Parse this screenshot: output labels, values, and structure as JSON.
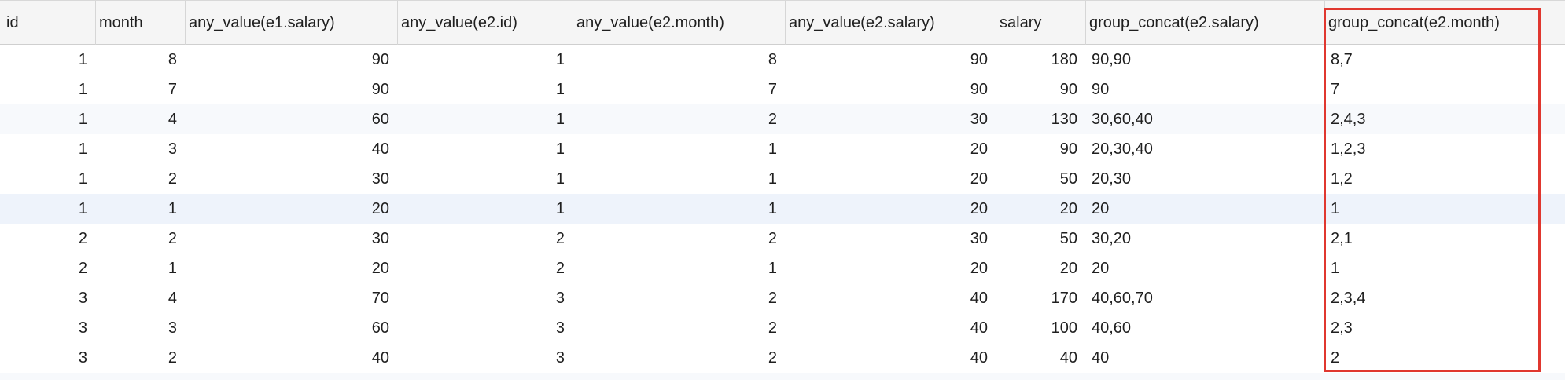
{
  "columns": [
    "id",
    "month",
    "any_value(e1.salary)",
    "any_value(e2.id)",
    "any_value(e2.month)",
    "any_value(e2.salary)",
    "salary",
    "group_concat(e2.salary)",
    "group_concat(e2.month)"
  ],
  "rows": [
    [
      "1",
      "8",
      "90",
      "1",
      "8",
      "90",
      "180",
      "90,90",
      "8,7"
    ],
    [
      "1",
      "7",
      "90",
      "1",
      "7",
      "90",
      "90",
      "90",
      "7"
    ],
    [
      "1",
      "4",
      "60",
      "1",
      "2",
      "30",
      "130",
      "30,60,40",
      "2,4,3"
    ],
    [
      "1",
      "3",
      "40",
      "1",
      "1",
      "20",
      "90",
      "20,30,40",
      "1,2,3"
    ],
    [
      "1",
      "2",
      "30",
      "1",
      "1",
      "20",
      "50",
      "20,30",
      "1,2"
    ],
    [
      "1",
      "1",
      "20",
      "1",
      "1",
      "20",
      "20",
      "20",
      "1"
    ],
    [
      "2",
      "2",
      "30",
      "2",
      "2",
      "30",
      "50",
      "30,20",
      "2,1"
    ],
    [
      "2",
      "1",
      "20",
      "2",
      "1",
      "20",
      "20",
      "20",
      "1"
    ],
    [
      "3",
      "4",
      "70",
      "3",
      "2",
      "40",
      "170",
      "40,60,70",
      "2,3,4"
    ],
    [
      "3",
      "3",
      "60",
      "3",
      "2",
      "40",
      "100",
      "40,60",
      "2,3"
    ],
    [
      "3",
      "2",
      "40",
      "3",
      "2",
      "40",
      "40",
      "40",
      "2"
    ]
  ],
  "highlight_color": "#e0372f"
}
